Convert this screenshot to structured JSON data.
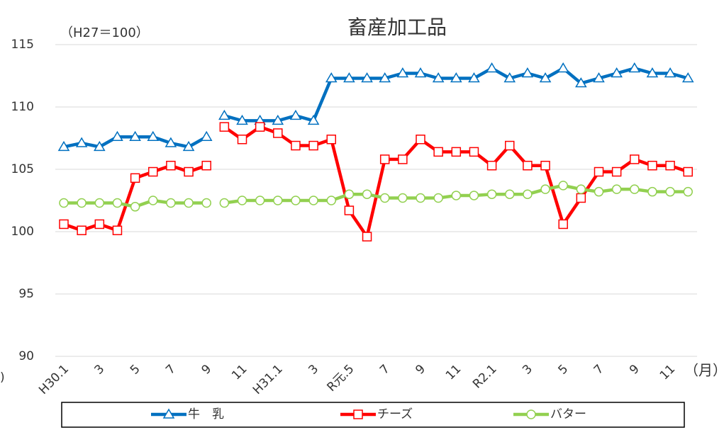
{
  "chart_data": {
    "type": "line",
    "title": "畜産加工品",
    "subtitle": "（H27＝100）",
    "y_axis_label": ")",
    "x_axis_label": "（月）",
    "categories": [
      "H30.1",
      null,
      "3",
      null,
      "5",
      null,
      "7",
      null,
      "9",
      null,
      "11",
      null,
      "H31.1",
      null,
      "3",
      null,
      "R元.5",
      null,
      "7",
      null,
      "9",
      null,
      "11",
      null,
      "R2.1",
      null,
      "3",
      null,
      "5",
      null,
      "7",
      null,
      "9",
      null,
      "11",
      null
    ],
    "line_breaks": [
      9
    ],
    "series": [
      {
        "name": "牛　乳",
        "color": "#0070c0",
        "marker": "triangle",
        "values": [
          106.8,
          107.1,
          106.8,
          107.6,
          107.6,
          107.6,
          107.1,
          106.8,
          107.6,
          109.3,
          108.9,
          108.9,
          108.9,
          109.3,
          108.9,
          112.3,
          112.3,
          112.3,
          112.3,
          112.7,
          112.7,
          112.3,
          112.3,
          112.3,
          113.1,
          112.3,
          112.7,
          112.3,
          113.1,
          111.9,
          112.3,
          112.7,
          113.1,
          112.7,
          112.7,
          112.3
        ]
      },
      {
        "name": "チーズ",
        "color": "#ff0000",
        "marker": "square",
        "values": [
          100.6,
          100.1,
          100.6,
          100.1,
          104.3,
          104.8,
          105.3,
          104.8,
          105.3,
          108.4,
          107.4,
          108.4,
          107.9,
          106.9,
          106.9,
          107.4,
          101.7,
          99.6,
          105.8,
          105.8,
          107.4,
          106.4,
          106.4,
          106.4,
          105.3,
          106.9,
          105.3,
          105.3,
          100.6,
          102.7,
          104.8,
          104.8,
          105.8,
          105.3,
          105.3,
          104.8
        ]
      },
      {
        "name": "バター",
        "color": "#92d050",
        "marker": "circle",
        "values": [
          102.3,
          102.3,
          102.3,
          102.3,
          102.0,
          102.5,
          102.3,
          102.3,
          102.3,
          102.3,
          102.5,
          102.5,
          102.5,
          102.5,
          102.5,
          102.5,
          103.0,
          103.0,
          102.7,
          102.7,
          102.7,
          102.7,
          102.9,
          102.9,
          103.0,
          103.0,
          103.0,
          103.4,
          103.7,
          103.4,
          103.2,
          103.4,
          103.4,
          103.2,
          103.2,
          103.2
        ]
      }
    ],
    "ylim": [
      90,
      115
    ],
    "yticks": [
      90,
      95,
      100,
      105,
      110,
      115
    ],
    "grid": true
  }
}
